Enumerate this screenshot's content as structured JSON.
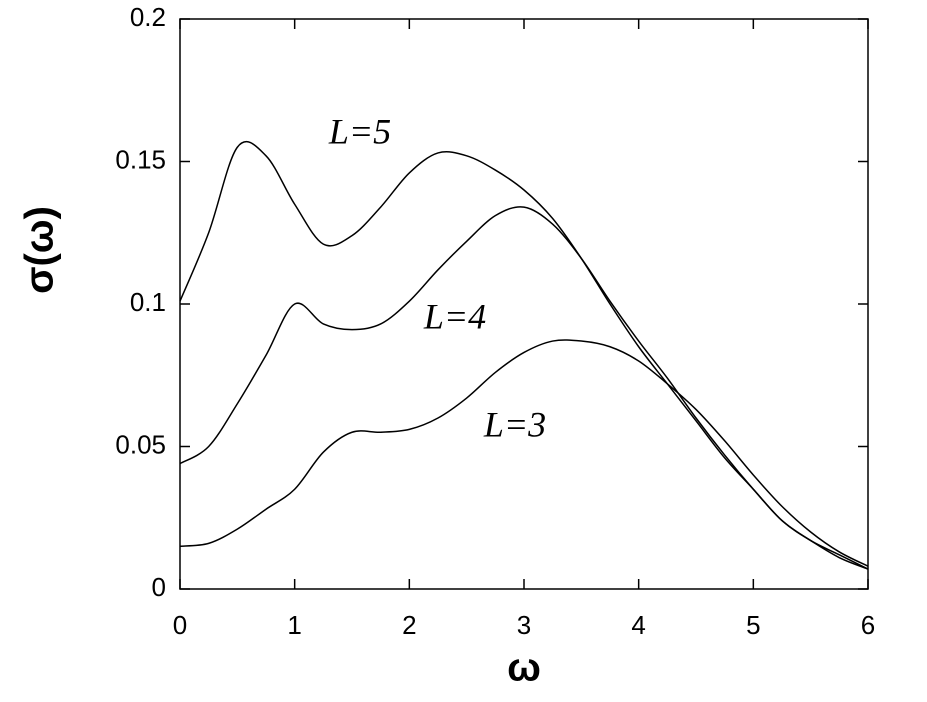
{
  "chart_data": {
    "type": "line",
    "x_label": "ω",
    "y_label": "σ(ω)",
    "x": [
      0,
      0.25,
      0.5,
      0.75,
      1,
      1.25,
      1.5,
      1.75,
      2,
      2.25,
      2.5,
      2.75,
      3,
      3.25,
      3.5,
      3.75,
      4,
      4.25,
      4.5,
      4.75,
      5,
      5.25,
      5.5,
      5.75,
      6
    ],
    "series": [
      {
        "name": "L=5",
        "color": "#000000",
        "values": [
          0.101,
          0.125,
          0.155,
          0.152,
          0.135,
          0.121,
          0.124,
          0.134,
          0.146,
          0.153,
          0.152,
          0.147,
          0.14,
          0.13,
          0.116,
          0.1,
          0.085,
          0.072,
          0.059,
          0.046,
          0.035,
          0.024,
          0.017,
          0.012,
          0.007
        ]
      },
      {
        "name": "L=4",
        "color": "#000000",
        "values": [
          0.044,
          0.05,
          0.065,
          0.082,
          0.1,
          0.093,
          0.091,
          0.093,
          0.101,
          0.112,
          0.122,
          0.131,
          0.134,
          0.128,
          0.116,
          0.101,
          0.087,
          0.074,
          0.06,
          0.047,
          0.035,
          0.024,
          0.017,
          0.011,
          0.007
        ]
      },
      {
        "name": "L=3",
        "color": "#000000",
        "values": [
          0.015,
          0.016,
          0.021,
          0.028,
          0.035,
          0.048,
          0.055,
          0.055,
          0.056,
          0.06,
          0.067,
          0.076,
          0.083,
          0.087,
          0.087,
          0.085,
          0.08,
          0.072,
          0.063,
          0.052,
          0.04,
          0.029,
          0.02,
          0.013,
          0.008
        ]
      }
    ],
    "xlim": [
      0,
      6
    ],
    "xticks": [
      0,
      1,
      2,
      3,
      4,
      5,
      6
    ],
    "ylim": [
      0,
      0.2
    ],
    "yticks": [
      0,
      0.05,
      0.1,
      0.15,
      0.2
    ],
    "grid": false
  }
}
